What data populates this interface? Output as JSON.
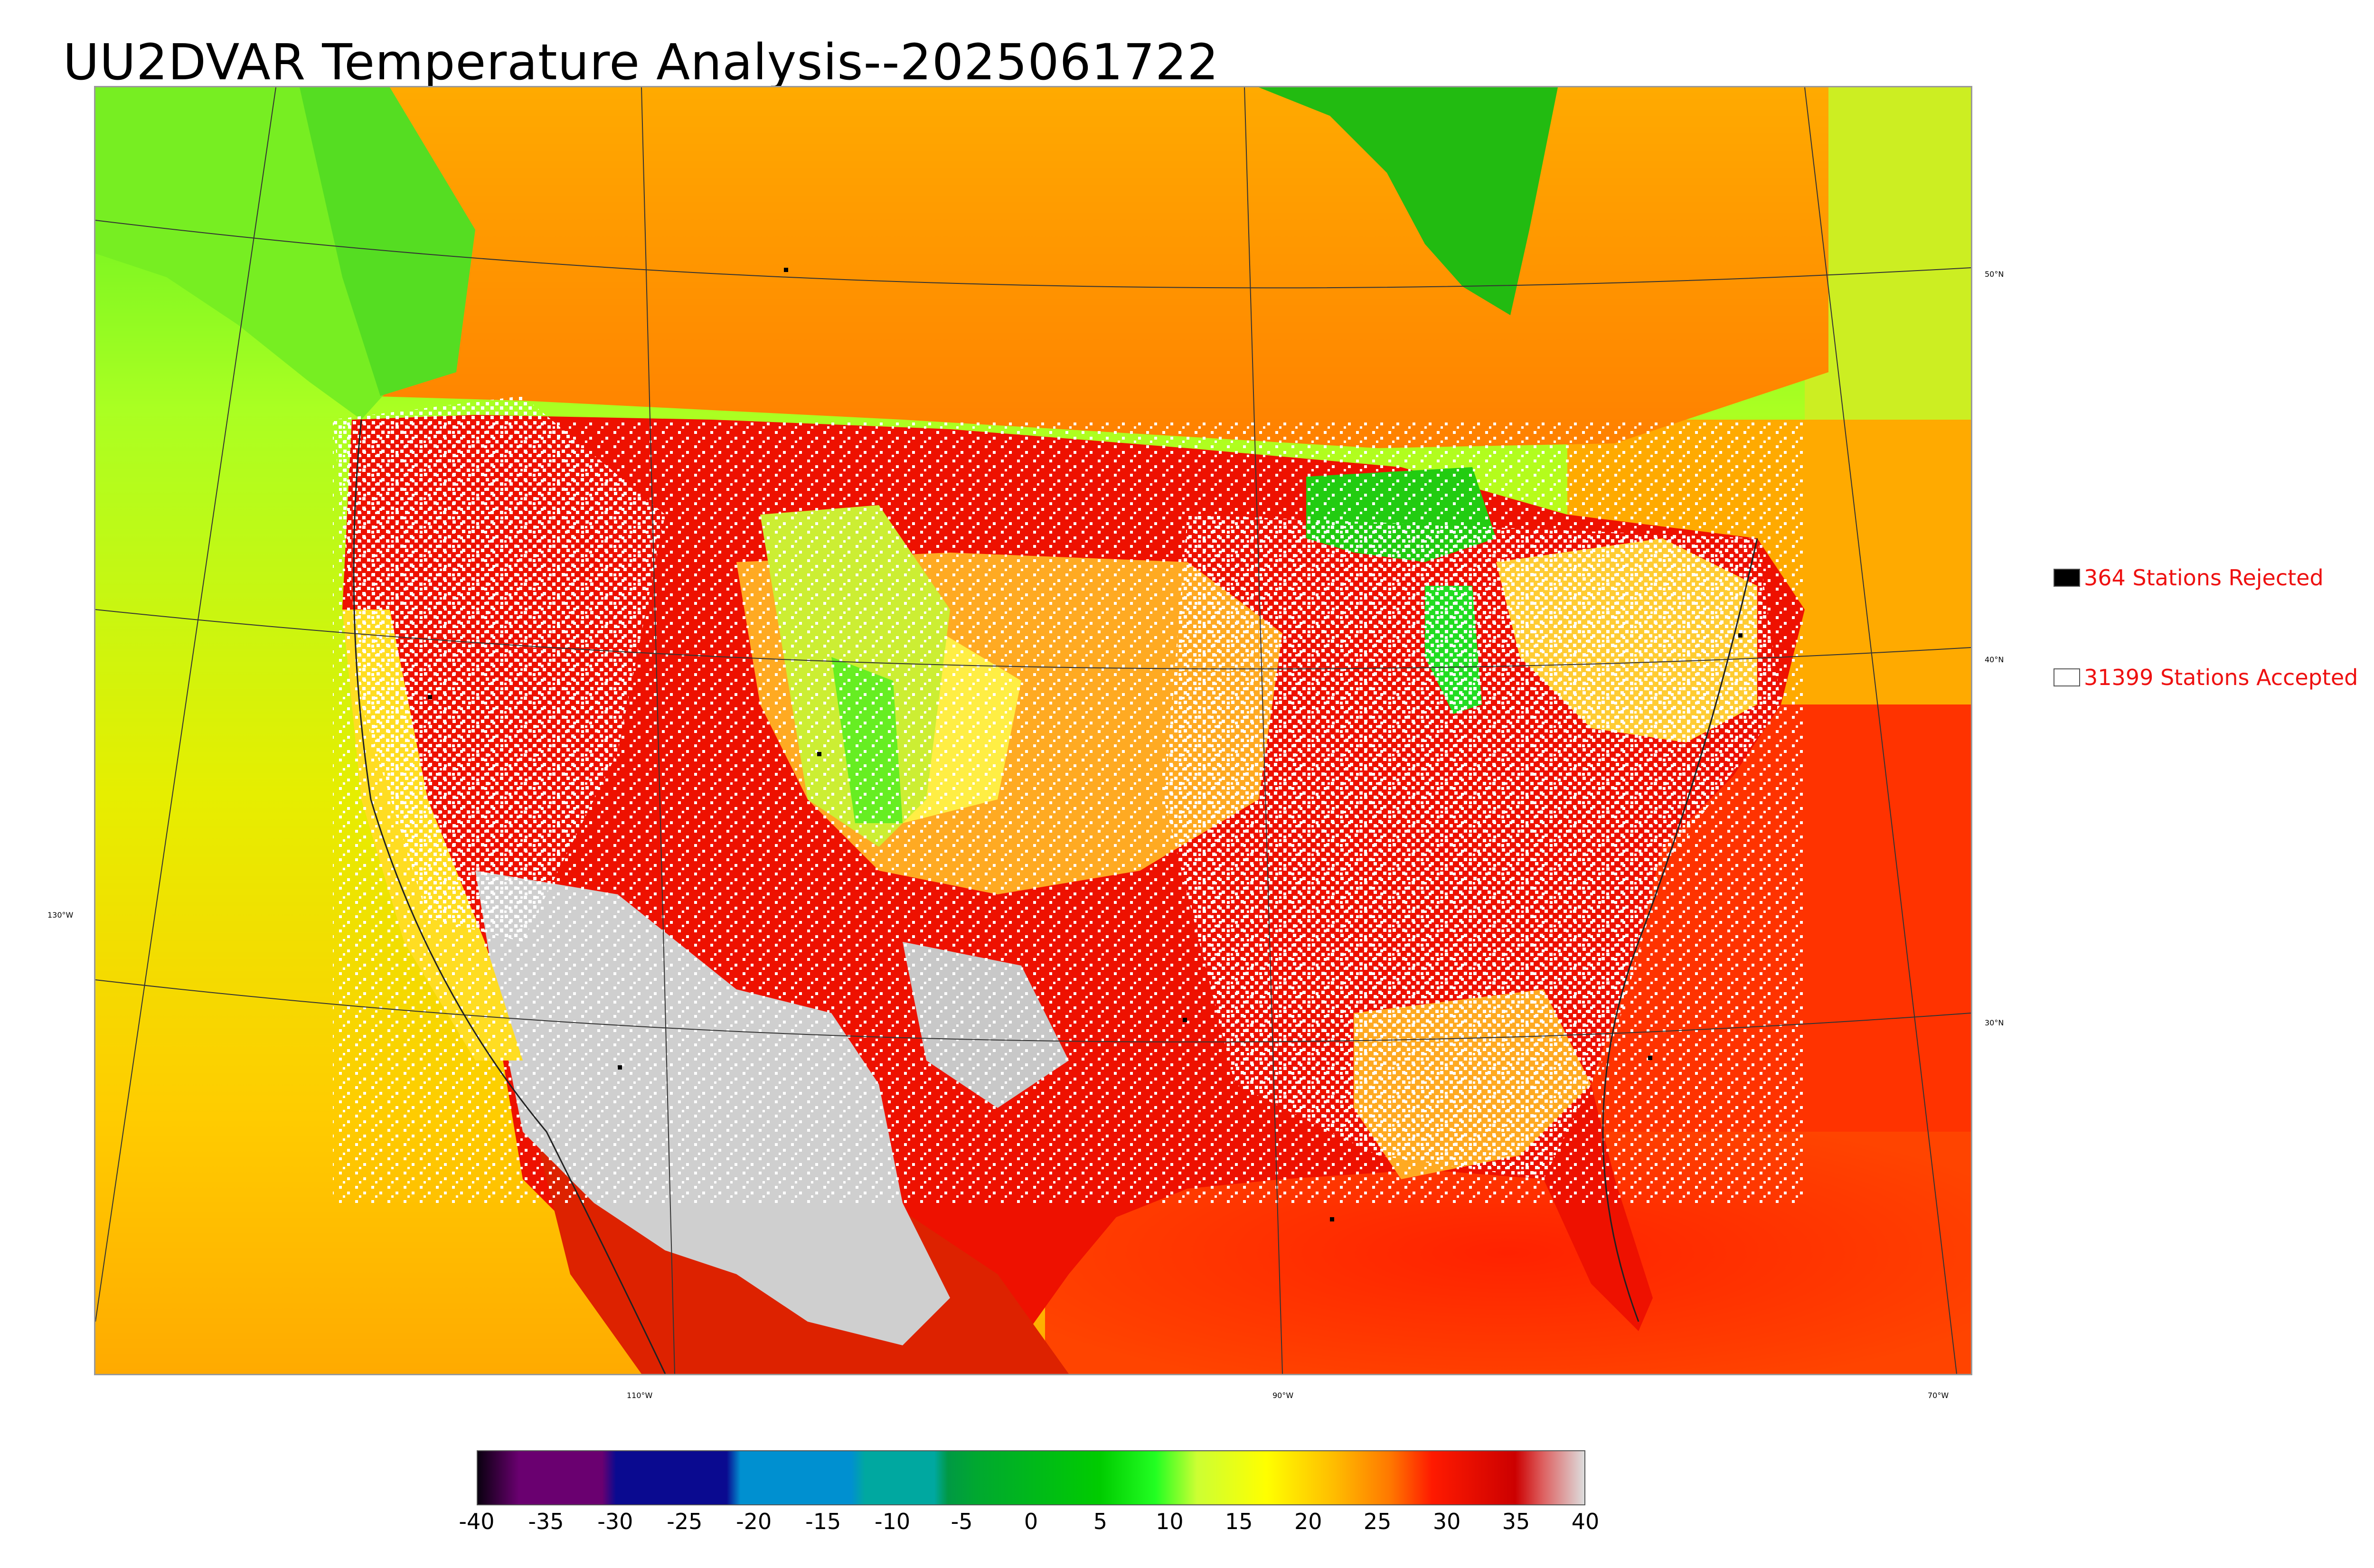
{
  "title": "UU2DVAR Temperature Analysis--2025061722",
  "map": {
    "lon_labels": [
      "110°W",
      "90°W",
      "70°W"
    ],
    "lat_labels": [
      "50°N",
      "40°N",
      "30°N"
    ],
    "west_label": "130°W"
  },
  "legend": {
    "rejected": {
      "label": "364 Stations Rejected",
      "color": "#000000"
    },
    "accepted": {
      "label": "31399 Stations Accepted",
      "color": "#ffffff"
    }
  },
  "colorbar": {
    "ticks": [
      "-40",
      "-35",
      "-30",
      "-25",
      "-20",
      "-15",
      "-10",
      "-5",
      "0",
      "5",
      "10",
      "15",
      "20",
      "25",
      "30",
      "35",
      "40"
    ],
    "range": [
      -40,
      40
    ],
    "stops": [
      {
        "v": -40,
        "c": "#0a0010"
      },
      {
        "v": -39,
        "c": "#2a0030"
      },
      {
        "v": -37,
        "c": "#6a0070"
      },
      {
        "v": -31,
        "c": "#6a0070"
      },
      {
        "v": -30,
        "c": "#0a0a90"
      },
      {
        "v": -22,
        "c": "#0a0a90"
      },
      {
        "v": -21,
        "c": "#0090d0"
      },
      {
        "v": -13,
        "c": "#0090d0"
      },
      {
        "v": -12,
        "c": "#00a8a0"
      },
      {
        "v": -7,
        "c": "#00a8a0"
      },
      {
        "v": -6,
        "c": "#009944"
      },
      {
        "v": -4,
        "c": "#00a830"
      },
      {
        "v": 5,
        "c": "#00cc00"
      },
      {
        "v": 9,
        "c": "#22ff22"
      },
      {
        "v": 12,
        "c": "#ccff33"
      },
      {
        "v": 17,
        "c": "#ffff00"
      },
      {
        "v": 22,
        "c": "#ffbb00"
      },
      {
        "v": 26,
        "c": "#ff7700"
      },
      {
        "v": 29,
        "c": "#ff1a00"
      },
      {
        "v": 35,
        "c": "#cc0000"
      },
      {
        "v": 37,
        "c": "#dd6060"
      },
      {
        "v": 40,
        "c": "#dddddd"
      }
    ]
  },
  "colors": {
    "ocean_west": "#ccee22",
    "land_hot": "#ee1100",
    "land_warm": "#ff8800",
    "desert_extreme": "#cfcfcf",
    "cool_green": "#22dd22",
    "label_red": "#ee1111"
  }
}
